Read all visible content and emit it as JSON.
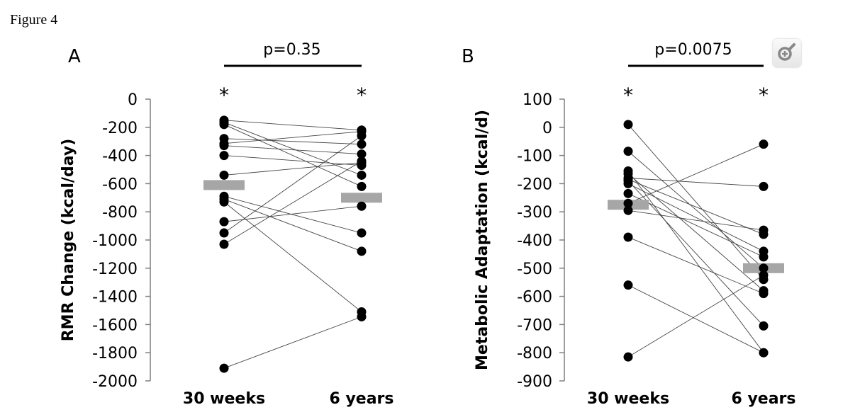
{
  "figure_label": "Figure 4",
  "zoom_icon": "zoom-in-icon",
  "chart_data": [
    {
      "type": "scatter",
      "panel": "A",
      "p_value": "p=0.35",
      "categories": [
        "30 weeks",
        "6 years"
      ],
      "ylabel": "RMR Change (kcal/day)",
      "ylim": [
        -2000,
        0
      ],
      "yticks": [
        0,
        -200,
        -400,
        -600,
        -800,
        -1000,
        -1200,
        -1400,
        -1600,
        -1800,
        -2000
      ],
      "significance": [
        "*",
        "*"
      ],
      "means": [
        -610,
        -700
      ],
      "pairs": [
        [
          -150,
          -220
        ],
        [
          -165,
          -540
        ],
        [
          -180,
          -620
        ],
        [
          -280,
          -320
        ],
        [
          -315,
          -230
        ],
        [
          -330,
          -390
        ],
        [
          -400,
          -470
        ],
        [
          -540,
          -450
        ],
        [
          -690,
          -950
        ],
        [
          -710,
          -1080
        ],
        [
          -730,
          -1510
        ],
        [
          -870,
          -760
        ],
        [
          -950,
          -260
        ],
        [
          -1030,
          -440
        ],
        [
          -1910,
          -1545
        ]
      ]
    },
    {
      "type": "scatter",
      "panel": "B",
      "p_value": "p=0.0075",
      "categories": [
        "30 weeks",
        "6 years"
      ],
      "ylabel": "Metabolic Adaptation (kcal/d)",
      "ylim": [
        -900,
        100
      ],
      "yticks": [
        100,
        0,
        -100,
        -200,
        -300,
        -400,
        -500,
        -600,
        -700,
        -800,
        -900
      ],
      "significance": [
        "*",
        "*"
      ],
      "means": [
        -275,
        -500
      ],
      "pairs": [
        [
          10,
          -540
        ],
        [
          -85,
          -500
        ],
        [
          -155,
          -800
        ],
        [
          -165,
          -580
        ],
        [
          -180,
          -210
        ],
        [
          -185,
          -380
        ],
        [
          -190,
          -705
        ],
        [
          -200,
          -440
        ],
        [
          -235,
          -460
        ],
        [
          -270,
          -60
        ],
        [
          -295,
          -365
        ],
        [
          -390,
          -590
        ],
        [
          -560,
          -800
        ],
        [
          -815,
          -525
        ]
      ]
    }
  ]
}
